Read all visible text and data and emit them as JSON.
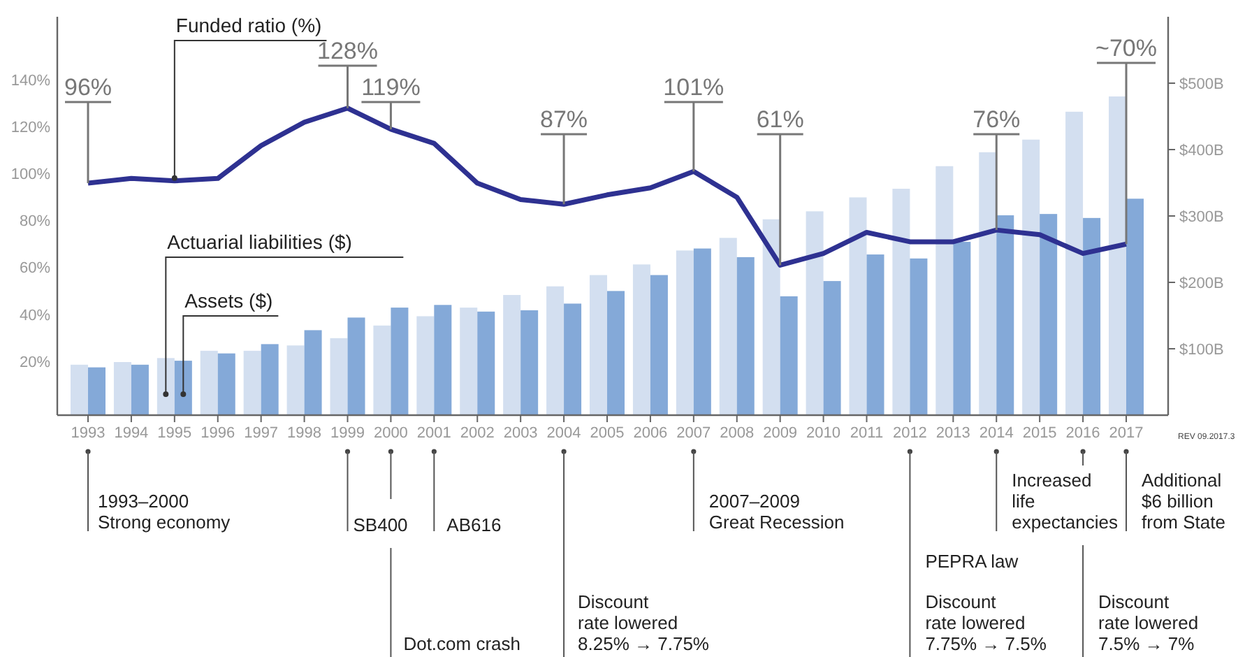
{
  "chart_data": {
    "type": "bar",
    "categories": [
      "1993",
      "1994",
      "1995",
      "1996",
      "1997",
      "1998",
      "1999",
      "2000",
      "2001",
      "2002",
      "2003",
      "2004",
      "2005",
      "2006",
      "2007",
      "2008",
      "2009",
      "2010",
      "2011",
      "2012",
      "2013",
      "2014",
      "2015",
      "2016",
      "2017"
    ],
    "series": [
      {
        "name": "Actuarial liabilities ($)",
        "axis": "y2",
        "color": "#d3dff0",
        "values": [
          76,
          80,
          86,
          97,
          97,
          105,
          116,
          135,
          149,
          162,
          181,
          194,
          211,
          227,
          248,
          267,
          295,
          307,
          328,
          341,
          375,
          396,
          415,
          457,
          480
        ]
      },
      {
        "name": "Assets ($)",
        "axis": "y2",
        "color": "#84a9d8",
        "values": [
          72,
          76,
          82,
          93,
          107,
          128,
          147,
          162,
          166,
          156,
          158,
          168,
          187,
          211,
          251,
          238,
          179,
          202,
          242,
          236,
          261,
          301,
          303,
          297,
          326
        ]
      },
      {
        "name": "Funded ratio (%)",
        "type": "line",
        "color": "#2e3191",
        "marker": "none",
        "values": [
          96,
          98,
          97,
          98,
          112,
          122,
          128,
          119,
          113,
          96,
          89,
          87,
          91,
          94,
          101,
          90,
          61,
          66,
          75,
          71,
          71,
          76,
          74,
          66,
          70
        ]
      }
    ],
    "ylim": [
      -3,
      167
    ],
    "yticks": [
      {
        "value": 20,
        "label": "20%"
      },
      {
        "value": 40,
        "label": "40%"
      },
      {
        "value": 60,
        "label": "60%"
      },
      {
        "value": 80,
        "label": "80%"
      },
      {
        "value": 100,
        "label": "100%"
      },
      {
        "value": 120,
        "label": "120%"
      },
      {
        "value": 140,
        "label": "140%"
      }
    ],
    "y2lim": [
      0,
      600
    ],
    "y2ticks": [
      {
        "value": 100,
        "label": "$100B"
      },
      {
        "value": 200,
        "label": "$200B"
      },
      {
        "value": 300,
        "label": "$300B"
      },
      {
        "value": 400,
        "label": "$400B"
      },
      {
        "value": 500,
        "label": "$500B"
      }
    ],
    "grid": false,
    "legend": false,
    "annotations": [
      {
        "text": "96%",
        "x": "1993",
        "y": 96
      },
      {
        "text": "128%",
        "x": "1999",
        "y": 128
      },
      {
        "text": "119%",
        "x": "2000",
        "y": 119
      },
      {
        "text": "87%",
        "x": "2004",
        "y": 87
      },
      {
        "text": "101%",
        "x": "2007",
        "y": 101
      },
      {
        "text": "61%",
        "x": "2009",
        "y": 61
      },
      {
        "text": "76%",
        "x": "2014",
        "y": 76
      },
      {
        "text": "~70%",
        "x": "2017",
        "y": 70
      },
      "1993–2000\nStrong economy",
      "SB400",
      "Dot.com crash",
      "AB616",
      "Discount\nrate lowered\n8.25% → 7.75%",
      "2007–2009\nGreat Recession",
      "PEPRA law",
      "Discount\nrate lowered\n7.75% → 7.5%",
      "Increased\nlife\nexpectancies",
      "Discount\nrate lowered\n7.5% → 7%",
      "Additional\n$6 billion\nfrom State",
      "REV 09.2017.3"
    ]
  }
}
